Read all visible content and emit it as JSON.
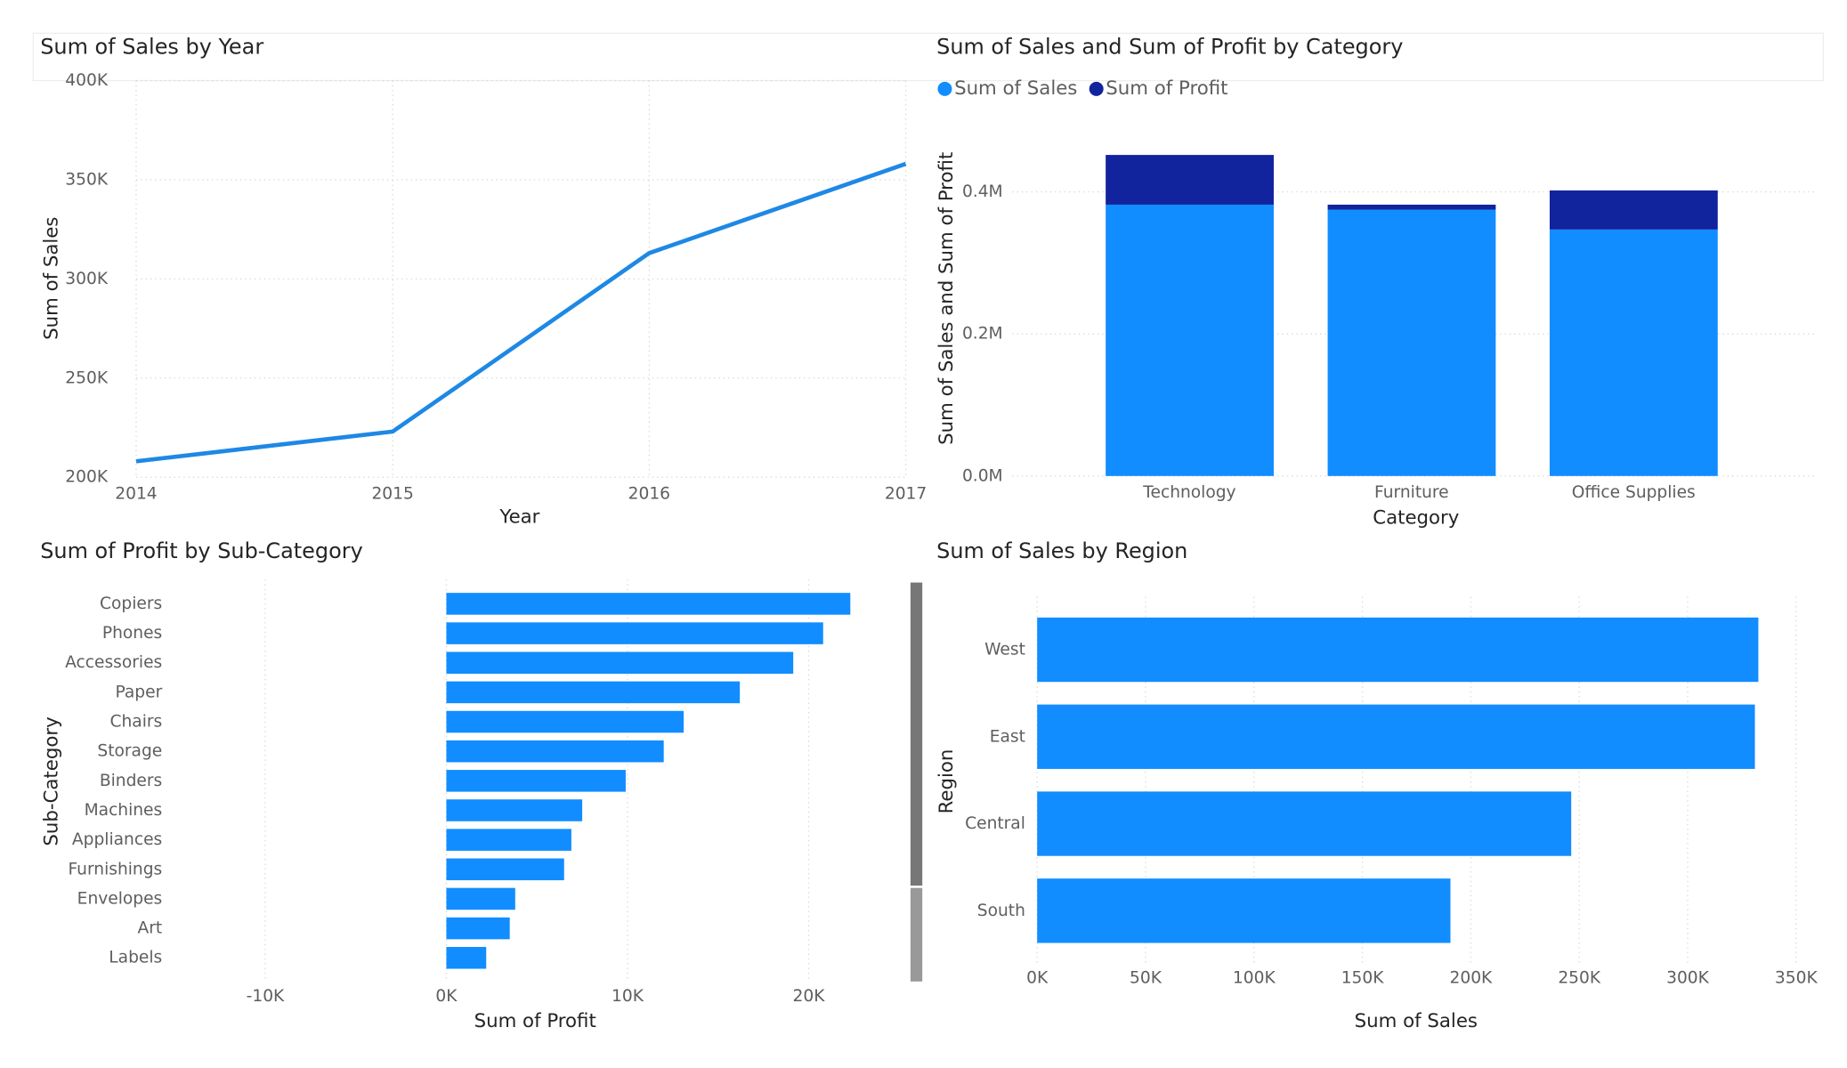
{
  "chart_data": [
    {
      "type": "line",
      "title": "Sum of Sales by Year",
      "x_label": "Year",
      "y_label": "Sum of Sales",
      "x": [
        2014,
        2015,
        2016,
        2017
      ],
      "values": [
        208000,
        223000,
        313000,
        358000
      ],
      "color": "#1e88e5",
      "xlim": [
        2014,
        2017
      ],
      "xticks": [
        2014,
        2015,
        2016,
        2017
      ],
      "ylim": [
        200000,
        400000
      ],
      "yticks": [
        {
          "value": 200000,
          "label": "200K"
        },
        {
          "value": 250000,
          "label": "250K"
        },
        {
          "value": 300000,
          "label": "300K"
        },
        {
          "value": 350000,
          "label": "350K"
        },
        {
          "value": 400000,
          "label": "400K"
        }
      ],
      "grid": true
    },
    {
      "type": "stacked-bar",
      "title": "Sum of Sales and Sum of Profit by Category",
      "x_label": "Category",
      "y_label": "Sum of Sales and Sum of Profit",
      "categories": [
        "Technology",
        "Furniture",
        "Office Supplies"
      ],
      "series": [
        {
          "name": "Sum of Sales",
          "color": "#118dff",
          "values": [
            382000,
            375000,
            347000
          ]
        },
        {
          "name": "Sum of Profit",
          "color": "#12239e",
          "values": [
            70000,
            7000,
            55000
          ]
        }
      ],
      "ylim": [
        0,
        500000
      ],
      "yticks": [
        {
          "value": 0,
          "label": "0.0M"
        },
        {
          "value": 200000,
          "label": "0.2M"
        },
        {
          "value": 400000,
          "label": "0.4M"
        }
      ],
      "legend": "top-left",
      "grid": true
    },
    {
      "type": "hbar",
      "title": "Sum of Profit by Sub-Category",
      "x_label": "Sum of Profit",
      "y_label": "Sub-Category",
      "categories": [
        "Copiers",
        "Phones",
        "Accessories",
        "Paper",
        "Chairs",
        "Storage",
        "Binders",
        "Machines",
        "Appliances",
        "Furnishings",
        "Envelopes",
        "Art",
        "Labels"
      ],
      "values": [
        22300,
        20800,
        19150,
        16200,
        13100,
        12000,
        9900,
        7500,
        6900,
        6500,
        3800,
        3500,
        2200
      ],
      "color": "#118dff",
      "xlim": [
        -15000,
        25000
      ],
      "xticks": [
        {
          "value": -10000,
          "label": "-10K"
        },
        {
          "value": 0,
          "label": "0K"
        },
        {
          "value": 10000,
          "label": "10K"
        },
        {
          "value": 20000,
          "label": "20K"
        }
      ],
      "grid": true
    },
    {
      "type": "hbar",
      "title": "Sum of Sales by Region",
      "x_label": "Sum of Sales",
      "y_label": "Region",
      "categories": [
        "West",
        "East",
        "Central",
        "South"
      ],
      "values": [
        332600,
        331000,
        246300,
        190600
      ],
      "color": "#118dff",
      "xlim": [
        0,
        350000
      ],
      "xticks": [
        {
          "value": 0,
          "label": "0K"
        },
        {
          "value": 50000,
          "label": "50K"
        },
        {
          "value": 100000,
          "label": "100K"
        },
        {
          "value": 150000,
          "label": "150K"
        },
        {
          "value": 200000,
          "label": "200K"
        },
        {
          "value": 250000,
          "label": "250K"
        },
        {
          "value": 300000,
          "label": "300K"
        },
        {
          "value": 350000,
          "label": "350K"
        }
      ],
      "grid": true
    }
  ]
}
